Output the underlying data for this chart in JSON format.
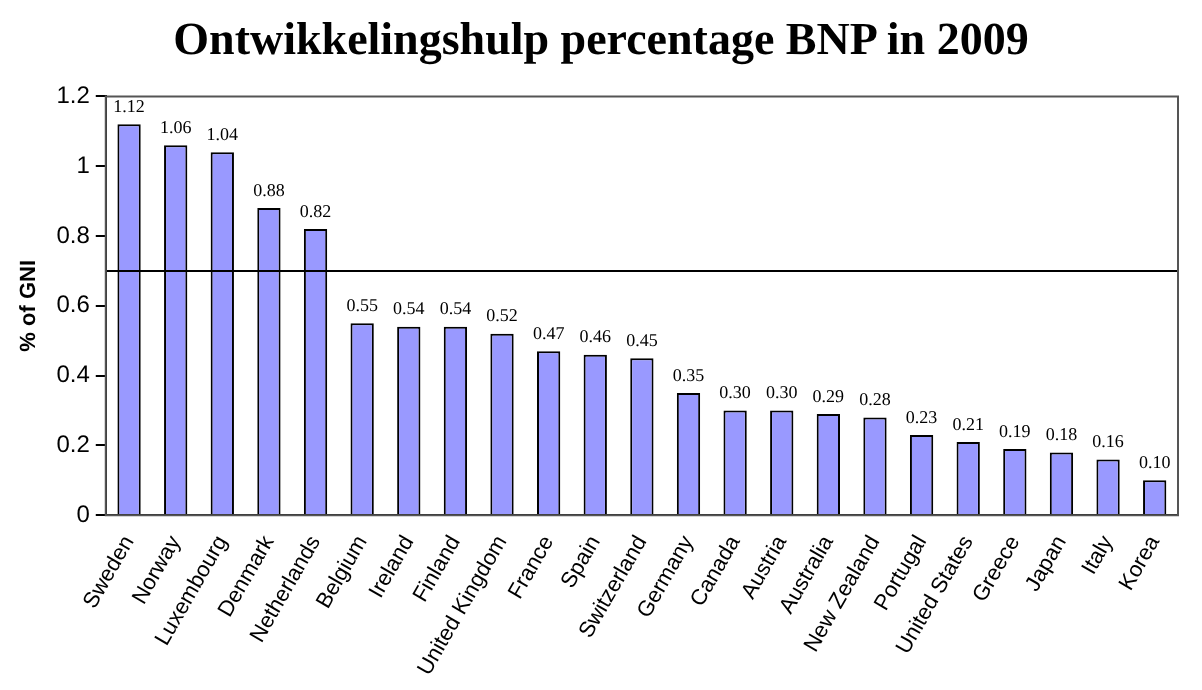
{
  "chart_data": {
    "type": "bar",
    "title": "Ontwikkelingshulp percentage BNP in 2009",
    "ylabel": "% of GNI",
    "categories": [
      "Sweden",
      "Norway",
      "Luxembourg",
      "Denmark",
      "Netherlands",
      "Belgium",
      "Ireland",
      "Finland",
      "United Kingdom",
      "France",
      "Spain",
      "Switzerland",
      "Germany",
      "Canada",
      "Austria",
      "Australia",
      "New Zealand",
      "Portugal",
      "United States",
      "Greece",
      "Japan",
      "Italy",
      "Korea"
    ],
    "values": [
      1.12,
      1.06,
      1.04,
      0.88,
      0.82,
      0.55,
      0.54,
      0.54,
      0.52,
      0.47,
      0.46,
      0.45,
      0.35,
      0.3,
      0.3,
      0.29,
      0.28,
      0.23,
      0.21,
      0.19,
      0.18,
      0.16,
      0.1
    ],
    "value_labels": [
      "1.12",
      "1.06",
      "1.04",
      "0.88",
      "0.82",
      "0.55",
      "0.54",
      "0.54",
      "0.52",
      "0.47",
      "0.46",
      "0.45",
      "0.35",
      "0.30",
      "0.30",
      "0.29",
      "0.28",
      "0.23",
      "0.21",
      "0.19",
      "0.18",
      "0.16",
      "0.10"
    ],
    "color": "#9999ff",
    "ylim": [
      0,
      1.2
    ],
    "yticks": [
      0,
      0.2,
      0.4,
      0.6,
      0.8,
      1,
      1.2
    ],
    "grid": false,
    "legend": false,
    "ref_lines": [
      {
        "axis": "y",
        "value": 0.7,
        "color": "#000000"
      }
    ]
  }
}
